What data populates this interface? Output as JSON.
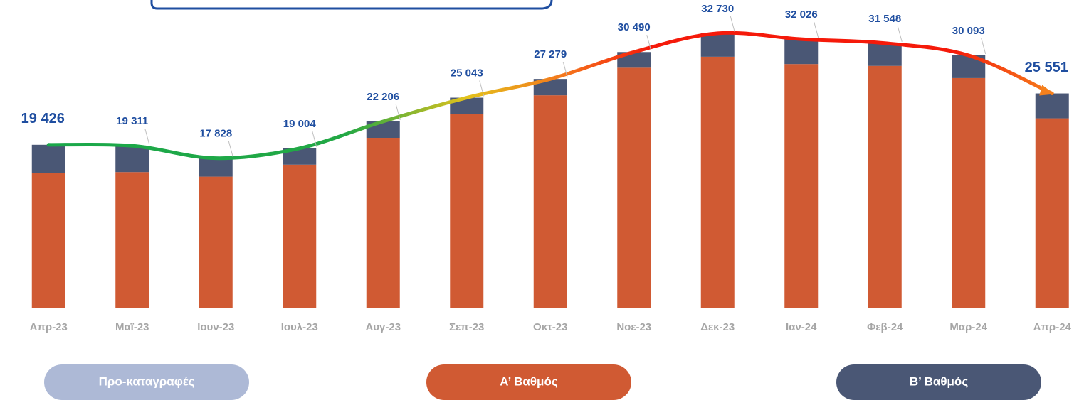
{
  "chart_data": {
    "type": "bar",
    "categories": [
      "Απρ-23",
      "Μαϊ-23",
      "Ιουν-23",
      "Ιουλ-23",
      "Αυγ-23",
      "Σεπ-23",
      "Οκτ-23",
      "Νοε-23",
      "Δεκ-23",
      "Ιαν-24",
      "Φεβ-24",
      "Μαρ-24",
      "Απρ-24"
    ],
    "series": [
      {
        "name": "Προ-καταγραφές",
        "color": "#adb9d6",
        "values": [
          0,
          0,
          0,
          0,
          0,
          0,
          0,
          0,
          0,
          0,
          0,
          0,
          0
        ]
      },
      {
        "name": "Α’ Βαθμός",
        "color": "#d05a33",
        "values": [
          16036,
          16171,
          15628,
          17054,
          20256,
          23093,
          25329,
          28620,
          29930,
          29056,
          28838,
          27383,
          22581
        ]
      },
      {
        "name": "Β’ Βαθμός",
        "color": "#4a5775",
        "values": [
          3390,
          3140,
          2200,
          1950,
          1950,
          1950,
          1950,
          1870,
          2800,
          2970,
          2710,
          2710,
          2970
        ]
      }
    ],
    "totals": [
      19426,
      19311,
      17828,
      19004,
      22206,
      25043,
      27279,
      30490,
      32730,
      32026,
      31548,
      30093,
      25551
    ],
    "total_labels": [
      "19 426",
      "19 311",
      "17 828",
      "19 004",
      "22 206",
      "25 043",
      "27 279",
      "30 490",
      "32 730",
      "32 026",
      "31 548",
      "30 093",
      "25 551"
    ],
    "ylim": [
      0,
      36700
    ]
  }
}
